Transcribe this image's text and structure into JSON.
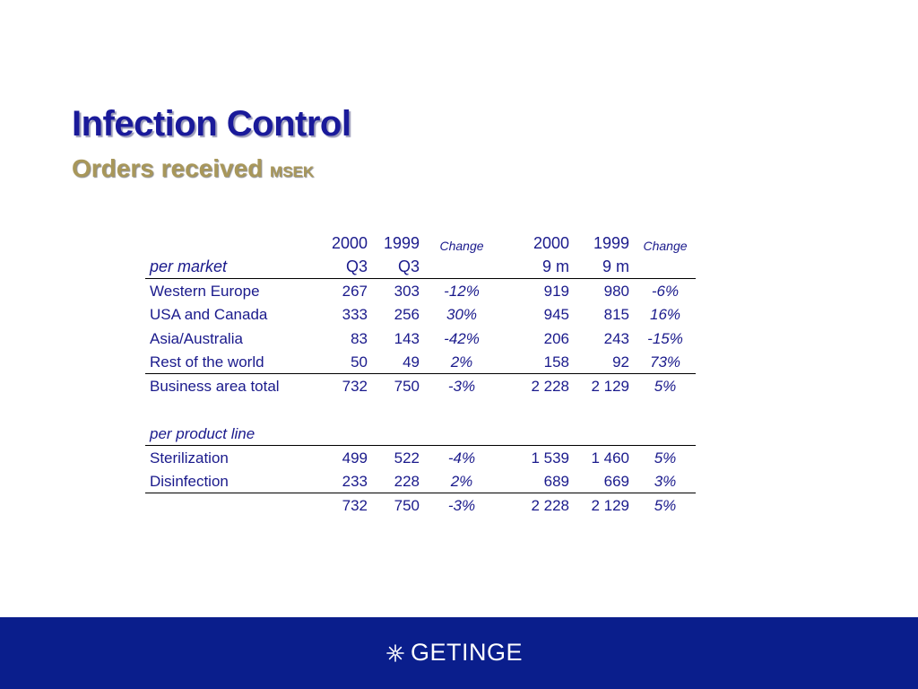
{
  "title": "Infection Control",
  "subtitle": "Orders received",
  "unit": "MSEK",
  "table": {
    "header_row1": [
      "",
      "2000",
      "1999",
      "Change",
      "2000",
      "1999",
      "Change"
    ],
    "header_row2": [
      "per market",
      "Q3",
      "Q3",
      "",
      "9 m",
      "9 m",
      ""
    ],
    "market_rows": [
      [
        "Western Europe",
        "267",
        "303",
        "-12%",
        "919",
        "980",
        "-6%"
      ],
      [
        "USA and Canada",
        "333",
        "256",
        "30%",
        "945",
        "815",
        "16%"
      ],
      [
        "Asia/Australia",
        "83",
        "143",
        "-42%",
        "206",
        "243",
        "-15%"
      ],
      [
        "Rest of the world",
        "50",
        "49",
        "2%",
        "158",
        "92",
        "73%"
      ]
    ],
    "market_total": [
      "Business area total",
      "732",
      "750",
      "-3%",
      "2 228",
      "2 129",
      "5%"
    ],
    "product_section_label": "per product line",
    "product_rows": [
      [
        "Sterilization",
        "499",
        "522",
        "-4%",
        "1 539",
        "1 460",
        "5%"
      ],
      [
        "Disinfection",
        "233",
        "228",
        "2%",
        "689",
        "669",
        "3%"
      ]
    ],
    "product_total": [
      "",
      "732",
      "750",
      "-3%",
      "2 228",
      "2 129",
      "5%"
    ]
  },
  "footer": {
    "logo_text": "GETINGE",
    "logo_icon": "getinge-snowflake-icon",
    "background": "#0a1e8c"
  }
}
